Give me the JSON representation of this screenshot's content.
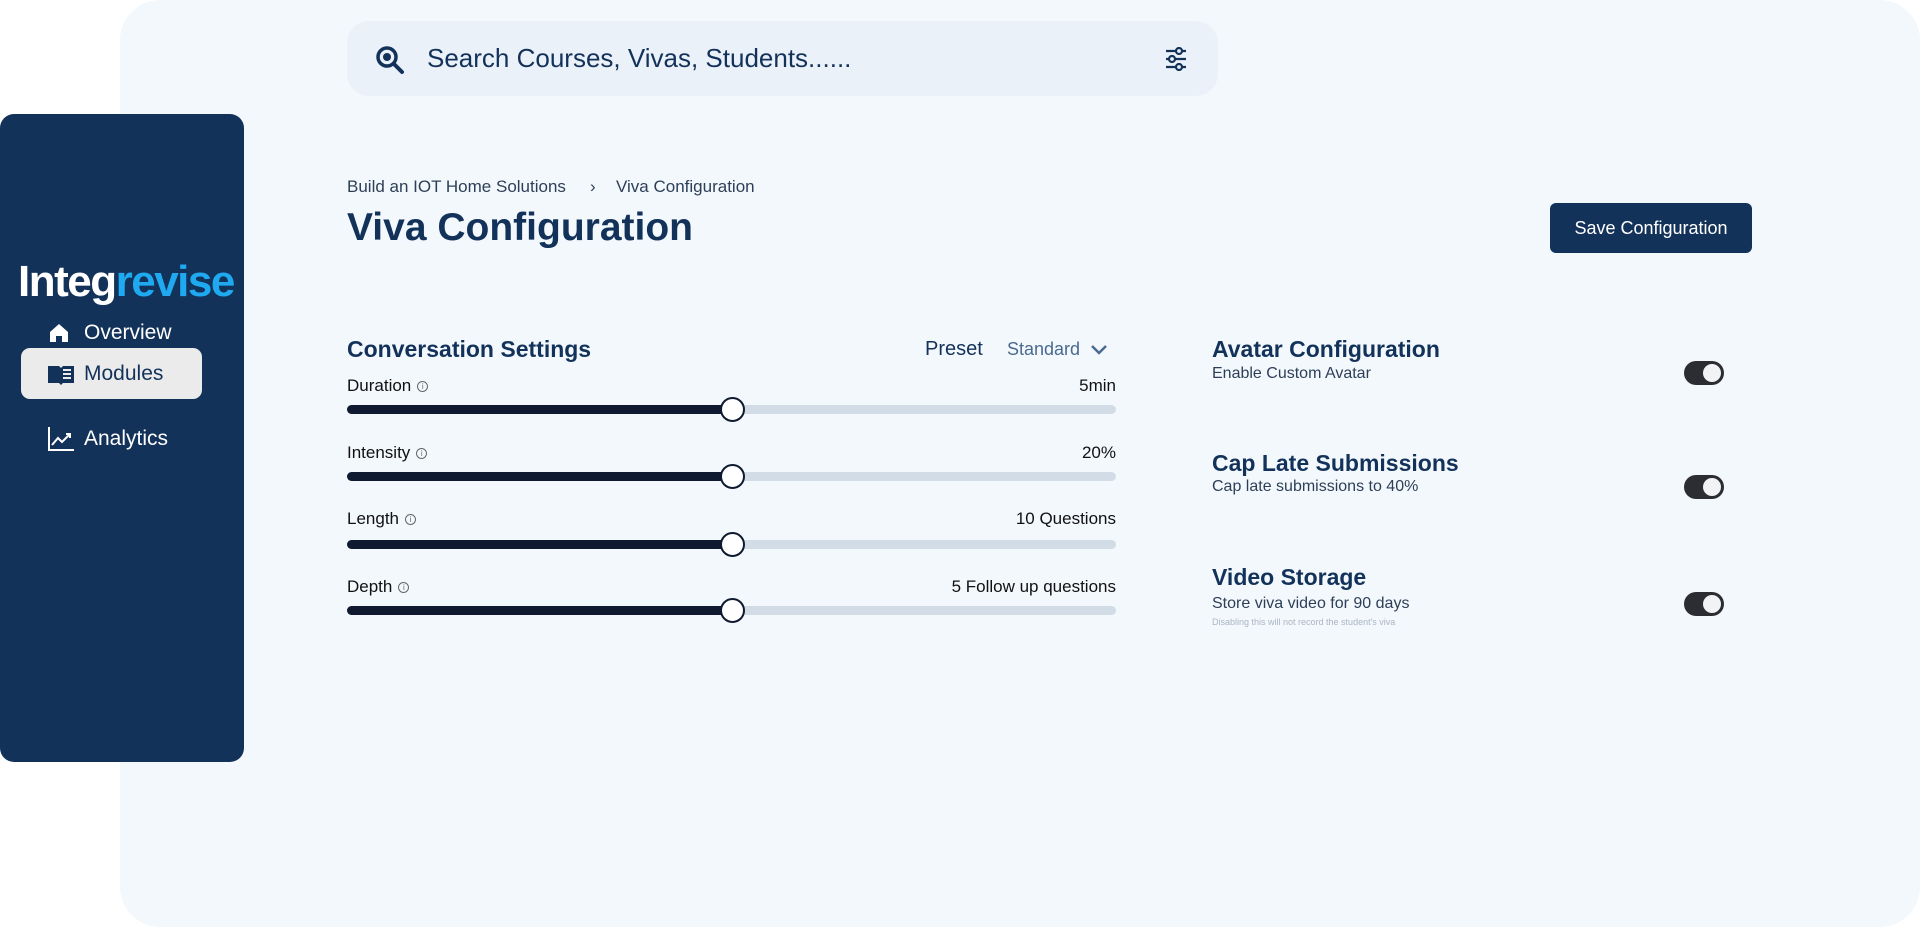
{
  "brand": {
    "logo_part1": "Integ",
    "logo_part2": "revise",
    "accent": "#1fa9f0",
    "navy": "#13325a"
  },
  "sidebar": {
    "items": [
      {
        "label": "Overview",
        "icon": "home-icon"
      },
      {
        "label": "Modules",
        "icon": "book-icon",
        "active": true
      },
      {
        "label": "Analytics",
        "icon": "chart-line-icon"
      }
    ]
  },
  "search": {
    "placeholder": "Search Courses, Vivas, Students......"
  },
  "breadcrumb": [
    "Build an IOT Home Solutions",
    "Viva Configuration"
  ],
  "page_title": "Viva Configuration",
  "save_label": "Save Configuration",
  "conversation": {
    "title": "Conversation Settings",
    "preset_label": "Preset",
    "preset_value": "Standard",
    "sliders": [
      {
        "label": "Duration",
        "value": "5min",
        "level_percent": 50
      },
      {
        "label": "Intensity",
        "value": "20%",
        "level_percent": 50
      },
      {
        "label": "Length",
        "value": "10 Questions",
        "level_percent": 50
      },
      {
        "label": "Depth",
        "value": "5 Follow up questions",
        "level_percent": 50
      }
    ]
  },
  "settings": [
    {
      "title": "Avatar Configuration",
      "desc": "Enable Custom Avatar",
      "on": true
    },
    {
      "title": "Cap Late Submissions",
      "desc": "Cap late submissions to 40%",
      "on": true
    },
    {
      "title": "Video Storage",
      "desc": "Store viva video for 90 days",
      "note": "Disabling this will not record the student's viva",
      "on": true
    }
  ]
}
